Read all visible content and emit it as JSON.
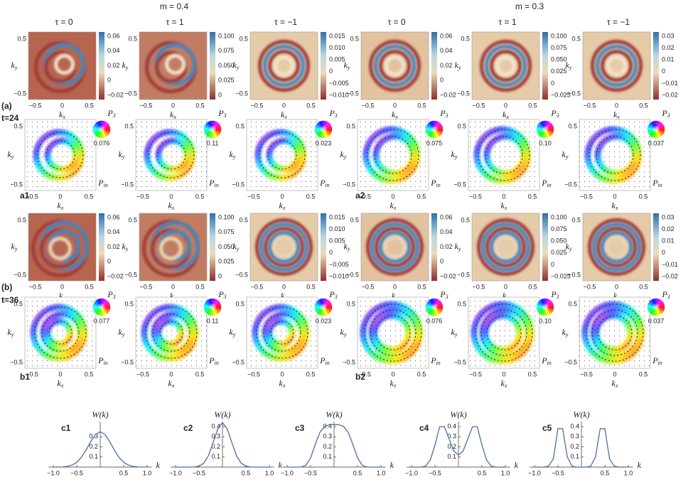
{
  "headers": {
    "m_left": "m = 0.4",
    "m_right": "m = 0.3",
    "tau": [
      "τ = 0",
      "τ = 1",
      "τ = −1",
      "τ = 0",
      "τ = 1",
      "τ = −1"
    ]
  },
  "row_labels": {
    "a": "(a)",
    "t_a": "t=24",
    "a1": "a1",
    "a2": "a2",
    "b": "(b)",
    "t_b": "t=36",
    "b1": "b1",
    "b2": "b2"
  },
  "axis_text": {
    "k": "k",
    "x": "x",
    "y": "y",
    "P": "P",
    "sub3": "3",
    "subin": "in",
    "x_ticks": [
      "−0.5",
      "0",
      "0.5"
    ],
    "y_ticks": [
      "0.5",
      "−0.5"
    ]
  },
  "colorbars": {
    "a": [
      [
        "0.06",
        "0.04",
        "0.02",
        "0",
        "−0.02"
      ],
      [
        "0.100",
        "0.075",
        "0.050",
        "0.025",
        "0"
      ],
      [
        "0.015",
        "0.010",
        "0.005",
        "0",
        "−0.005",
        "−0.010"
      ],
      [
        "0.06",
        "0.04",
        "0.02",
        "0",
        "−0.02"
      ],
      [
        "0.100",
        "0.075",
        "0.050",
        "0.025",
        "0",
        "−0.025"
      ],
      [
        "0.03",
        "0.02",
        "0.01",
        "0",
        "−0.01",
        "−0.02"
      ]
    ],
    "b": [
      [
        "0.06",
        "0.04",
        "0.02",
        "0",
        "−0.02"
      ],
      [
        "0.100",
        "0.075",
        "0.050",
        "0.025",
        "0"
      ],
      [
        "0.015",
        "0.010",
        "0.005",
        "0",
        "−0.005",
        "−0.010"
      ],
      [
        "0.06",
        "0.04",
        "0.02",
        "0",
        "−0.02"
      ],
      [
        "0.100",
        "0.075",
        "0.050",
        "0.025",
        "0",
        "−0.025"
      ],
      [
        "0.03",
        "0.02",
        "0.01",
        "0",
        "−0.01",
        "−0.02"
      ]
    ]
  },
  "pin_max": {
    "a": [
      "0.076",
      "0.11",
      "0.023",
      "0.075",
      "0.10",
      "0.037"
    ],
    "b": [
      "0.077",
      "0.11",
      "0.023",
      "0.076",
      "0.10",
      "0.037"
    ]
  },
  "chart_data": [
    {
      "type": "line",
      "label": "c1",
      "y_label": "W(k)",
      "x_label": "k",
      "x": [
        -1,
        -0.9,
        -0.8,
        -0.7,
        -0.6,
        -0.5,
        -0.4,
        -0.3,
        -0.2,
        -0.1,
        0,
        0.1,
        0.2,
        0.3,
        0.4,
        0.5,
        0.6,
        0.7,
        0.8,
        0.9,
        1
      ],
      "series": [
        {
          "color": "#4a6fa5",
          "values": [
            0,
            0.001,
            0.002,
            0.007,
            0.02,
            0.047,
            0.097,
            0.17,
            0.254,
            0.323,
            0.35,
            0.323,
            0.254,
            0.17,
            0.097,
            0.047,
            0.02,
            0.007,
            0.002,
            0.001,
            0
          ]
        }
      ],
      "xlim": [
        -1.1,
        1.1
      ],
      "ylim": [
        0,
        0.45
      ],
      "xticks": [
        {
          "value": -1,
          "label": "−1.0"
        },
        {
          "value": -0.5,
          "label": "−0.5"
        },
        0.5,
        {
          "value": 1,
          "label": "1.0"
        }
      ],
      "yticks": [
        0.1,
        0.2,
        0.3
      ]
    },
    {
      "type": "line",
      "label": "c2",
      "y_label": "W(k)",
      "x_label": "k",
      "x": [
        -1,
        -0.9,
        -0.8,
        -0.7,
        -0.6,
        -0.5,
        -0.4,
        -0.3,
        -0.2,
        -0.1,
        0,
        0.1,
        0.2,
        0.3,
        0.4,
        0.5,
        0.6,
        0.7,
        0.8,
        0.9,
        1
      ],
      "series": [
        {
          "color": "#4a6fa5",
          "values": [
            0,
            0,
            0,
            0,
            0.002,
            0.009,
            0.038,
            0.112,
            0.243,
            0.378,
            0.44,
            0.378,
            0.243,
            0.112,
            0.038,
            0.009,
            0.002,
            0,
            0,
            0,
            0
          ]
        }
      ],
      "xlim": [
        -1.1,
        1.1
      ],
      "ylim": [
        0,
        0.45
      ],
      "xticks": [
        {
          "value": -1,
          "label": "−1.0"
        },
        {
          "value": -0.5,
          "label": "−0.5"
        },
        0.5,
        {
          "value": 1,
          "label": "1.0"
        }
      ],
      "yticks": [
        0.1,
        0.2,
        0.3,
        0.4
      ]
    },
    {
      "type": "line",
      "label": "c3",
      "y_label": "W(k)",
      "x_label": "k",
      "x": [
        -1,
        -0.9,
        -0.8,
        -0.7,
        -0.6,
        -0.5,
        -0.4,
        -0.3,
        -0.2,
        -0.1,
        0,
        0.1,
        0.2,
        0.3,
        0.4,
        0.5,
        0.6,
        0.7,
        0.8,
        0.9,
        1
      ],
      "series": [
        {
          "color": "#4a6fa5",
          "values": [
            0,
            0,
            0,
            0.001,
            0.018,
            0.092,
            0.225,
            0.345,
            0.404,
            0.419,
            0.42,
            0.419,
            0.404,
            0.345,
            0.225,
            0.092,
            0.018,
            0.001,
            0,
            0,
            0
          ]
        }
      ],
      "xlim": [
        -1.1,
        1.1
      ],
      "ylim": [
        0,
        0.45
      ],
      "xticks": [
        {
          "value": -1,
          "label": "−1.0"
        },
        {
          "value": -0.5,
          "label": "−0.5"
        },
        0.5,
        {
          "value": 1,
          "label": "1.0"
        }
      ],
      "yticks": [
        0.1,
        0.2,
        0.3,
        0.4
      ]
    },
    {
      "type": "line",
      "label": "c4",
      "y_label": "W(k)",
      "x_label": "k",
      "x": [
        -1,
        -0.9,
        -0.8,
        -0.7,
        -0.6,
        -0.5,
        -0.4,
        -0.3,
        -0.2,
        -0.1,
        0,
        0.1,
        0.2,
        0.3,
        0.4,
        0.5,
        0.6,
        0.7,
        0.8,
        0.9,
        1
      ],
      "series": [
        {
          "color": "#4a6fa5",
          "values": [
            0,
            0,
            0,
            0.01,
            0.07,
            0.22,
            0.4,
            0.4,
            0.28,
            0.16,
            0.12,
            0.16,
            0.28,
            0.4,
            0.4,
            0.22,
            0.07,
            0.01,
            0,
            0,
            0
          ]
        }
      ],
      "xlim": [
        -1.1,
        1.1
      ],
      "ylim": [
        0,
        0.45
      ],
      "xticks": [
        {
          "value": -1,
          "label": "−1.0"
        },
        {
          "value": -0.5,
          "label": "−0.5"
        },
        0.5,
        {
          "value": 1,
          "label": "1.0"
        }
      ],
      "yticks": [
        0.1,
        0.2,
        0.3,
        0.4
      ]
    },
    {
      "type": "line",
      "label": "c5",
      "y_label": "W(k)",
      "x_label": "k",
      "x": [
        -1,
        -0.9,
        -0.8,
        -0.7,
        -0.6,
        -0.5,
        -0.4,
        -0.3,
        -0.2,
        -0.1,
        0,
        0.1,
        0.2,
        0.3,
        0.4,
        0.5,
        0.6,
        0.7,
        0.8,
        0.9,
        1
      ],
      "series": [
        {
          "color": "#4a6fa5",
          "values": [
            0,
            0,
            0,
            0.01,
            0.08,
            0.38,
            0.38,
            0.1,
            0.01,
            0,
            0,
            0,
            0.01,
            0.1,
            0.38,
            0.38,
            0.08,
            0.01,
            0,
            0,
            0
          ]
        }
      ],
      "xlim": [
        -1.1,
        1.1
      ],
      "ylim": [
        0,
        0.45
      ],
      "xticks": [
        {
          "value": -1,
          "label": "−1.0"
        },
        {
          "value": -0.5,
          "label": "−0.5"
        },
        0.5,
        {
          "value": 1,
          "label": "1.0"
        }
      ],
      "yticks": [
        0.1,
        0.2,
        0.3,
        0.4
      ]
    }
  ]
}
